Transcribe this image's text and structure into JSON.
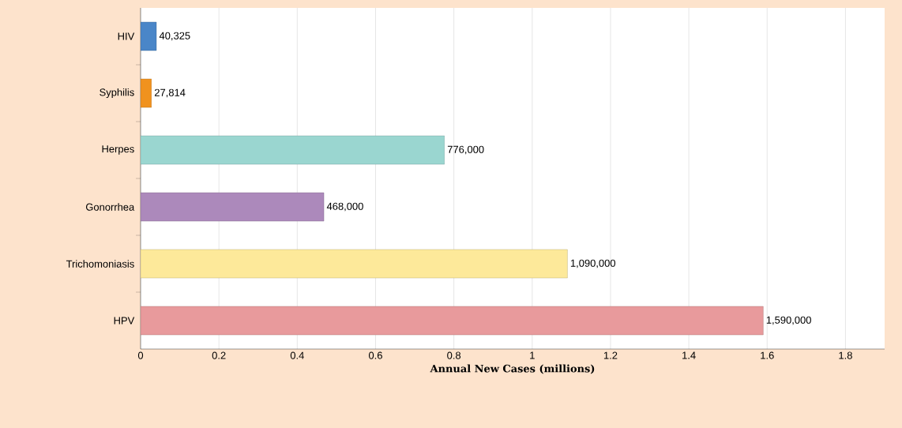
{
  "chart_data": {
    "type": "bar",
    "orientation": "horizontal",
    "xlabel": "Annual New Cases (millions)",
    "categories": [
      "HIV",
      "Syphilis",
      "Herpes",
      "Gonorrhea",
      "Trichomoniasis",
      "HPV"
    ],
    "values": [
      0.040325,
      0.027814,
      0.776,
      0.468,
      1.09,
      1.59
    ],
    "annotations": [
      {
        "text": "40,325",
        "x": 0.040325,
        "y": "HIV"
      },
      {
        "text": "27,814",
        "x": 0.027814,
        "y": "Syphilis"
      },
      {
        "text": "776,000",
        "x": 0.776,
        "y": "Herpes"
      },
      {
        "text": "468,000",
        "x": 0.468,
        "y": "Gonorrhea"
      },
      {
        "text": "1,090,000",
        "x": 1.09,
        "y": "Trichomoniasis"
      },
      {
        "text": "1,590,000",
        "x": 1.59,
        "y": "HPV"
      }
    ],
    "colors": [
      "#4a86c8",
      "#f0921e",
      "#9ad6d0",
      "#ac89bb",
      "#fde99a",
      "#e89a9c"
    ],
    "xlim": [
      0,
      1.9
    ],
    "xticks": [
      0,
      0.2,
      0.4,
      0.6,
      0.8,
      1,
      1.2,
      1.4,
      1.6,
      1.8
    ],
    "grid": "x"
  }
}
